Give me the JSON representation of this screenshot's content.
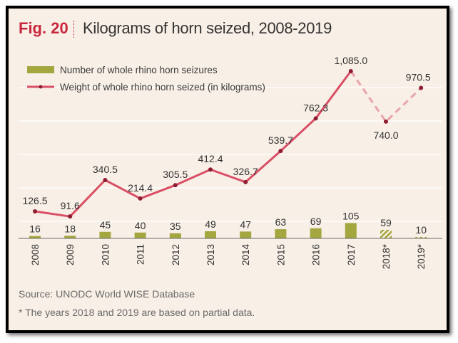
{
  "header": {
    "fig_label": "Fig. 20",
    "title": "Kilograms of horn seized, 2008-2019"
  },
  "footer": {
    "source": "Source: UNODC World WISE Database",
    "note": "* The years 2018 and 2019 are based on partial data."
  },
  "colors": {
    "bar": "#a4a63f",
    "line": "#d94f66",
    "partial_line": "#e8a5a9",
    "background": "#f8efe6",
    "grid": "#ffffff"
  },
  "chart_data": {
    "type": "bar+line",
    "categories": [
      "2008",
      "2009",
      "2010",
      "2011",
      "2012",
      "2013",
      "2014",
      "2015",
      "2016",
      "2017",
      "2018*",
      "2019*"
    ],
    "series": [
      {
        "name": "Number of whole rhino horn seizures",
        "type": "bar",
        "values": [
          16,
          18,
          45,
          40,
          35,
          49,
          47,
          63,
          69,
          105,
          59,
          10
        ],
        "labels": [
          "16",
          "18",
          "45",
          "40",
          "35",
          "49",
          "47",
          "63",
          "69",
          "105",
          "59",
          "10"
        ],
        "partial_from_index": 10
      },
      {
        "name": "Weight of whole rhino horn seized (in kilograms)",
        "type": "line",
        "values": [
          126.5,
          91.6,
          340.5,
          214.4,
          305.5,
          412.4,
          326.7,
          539.7,
          762.3,
          1085.0,
          740.0,
          970.5
        ],
        "labels": [
          "126.5",
          "91.6",
          "340.5",
          "214.4",
          "305.5",
          "412.4",
          "326.7",
          "539.7",
          "762.3",
          "1,085.0",
          "740.0",
          "970.5"
        ],
        "partial_from_index": 10
      }
    ],
    "legend_position": "top-left",
    "grid": true
  }
}
